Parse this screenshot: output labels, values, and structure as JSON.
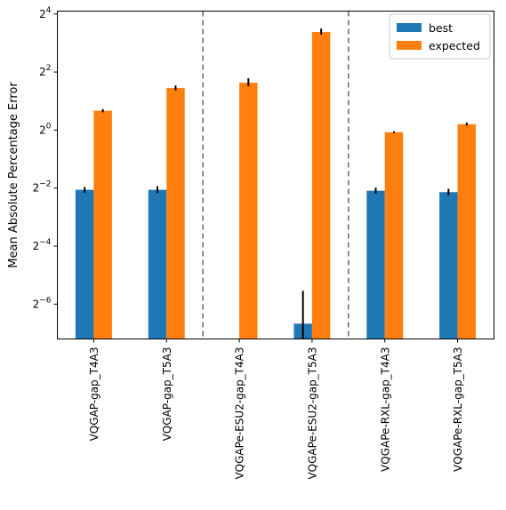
{
  "chart_data": {
    "type": "bar",
    "title": "",
    "xlabel": "",
    "ylabel": "Mean Absolute Percentage Error",
    "yscale": "log2",
    "ylim_log2": [
      -7.2,
      4.1
    ],
    "yticks": [
      {
        "base": "2",
        "exp": "4",
        "log2": 4
      },
      {
        "base": "2",
        "exp": "2",
        "log2": 2
      },
      {
        "base": "2",
        "exp": "0",
        "log2": 0
      },
      {
        "base": "2",
        "exp": "−2",
        "log2": -2
      },
      {
        "base": "2",
        "exp": "−4",
        "log2": -4
      },
      {
        "base": "2",
        "exp": "−6",
        "log2": -6
      }
    ],
    "categories": [
      "VQGAP-gap_T4A3",
      "VQGAP-gap_T5A3",
      "VQGAPe-ESU2-gap_T4A3",
      "VQGAPe-ESU2-gap_T5A3",
      "VQGAPe-RXL-gap_T4A3",
      "VQGAPe-RXL-gap_T5A3"
    ],
    "separators_after_index": [
      1,
      3
    ],
    "legend_position": "top-right",
    "series": [
      {
        "name": "best",
        "color": "#1f77b4",
        "values": [
          0.24,
          0.24,
          null,
          0.0098,
          0.235,
          0.227
        ],
        "err_low": [
          0.224,
          0.222,
          null,
          0.0068,
          0.22,
          0.21
        ],
        "err_high": [
          0.257,
          0.262,
          null,
          0.0215,
          0.253,
          0.246
        ]
      },
      {
        "name": "expected",
        "color": "#ff7f0e",
        "values": [
          1.59,
          2.73,
          3.1,
          10.4,
          0.95,
          1.15
        ],
        "err_low": [
          1.53,
          2.58,
          2.85,
          9.8,
          0.93,
          1.11
        ],
        "err_high": [
          1.65,
          2.9,
          3.45,
          11.3,
          0.97,
          1.2
        ]
      }
    ]
  }
}
